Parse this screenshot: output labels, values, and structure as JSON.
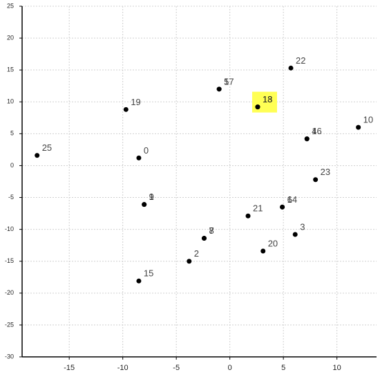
{
  "chart_data": {
    "type": "scatter",
    "labels": [
      "25",
      "0",
      "19",
      "9",
      "1",
      "15",
      "2",
      "7",
      "8",
      "5",
      "17",
      "21",
      "20",
      "13",
      "18",
      "22",
      "3",
      "6",
      "14",
      "23",
      "4",
      "16",
      "10"
    ],
    "x": [
      -18.0,
      -8.5,
      -9.7,
      -8.0,
      -8.0,
      -8.5,
      -3.8,
      -2.4,
      -2.4,
      -1.0,
      -1.0,
      1.7,
      3.1,
      2.6,
      2.6,
      5.7,
      6.1,
      4.9,
      4.9,
      8.0,
      7.2,
      7.2,
      12.0
    ],
    "values": [
      1.6,
      1.2,
      8.8,
      -6.1,
      -6.1,
      -18.1,
      -15.0,
      -11.4,
      -11.4,
      12.0,
      12.0,
      -7.9,
      -13.4,
      9.2,
      9.2,
      15.3,
      -10.8,
      -6.5,
      -6.5,
      -2.2,
      4.2,
      4.2,
      6.0
    ],
    "color": "#000000",
    "highlighted": [
      13,
      14
    ],
    "highlight_color": "#ffff55",
    "xlim": [
      -19.4,
      13.7
    ],
    "xticks": [
      -15,
      -10,
      -5,
      0,
      5,
      10
    ],
    "ylim": [
      -30,
      25
    ],
    "yticks": [
      -30,
      -25,
      -20,
      -15,
      -10,
      -5,
      0,
      5,
      10,
      15,
      20,
      25
    ],
    "grid": true
  }
}
